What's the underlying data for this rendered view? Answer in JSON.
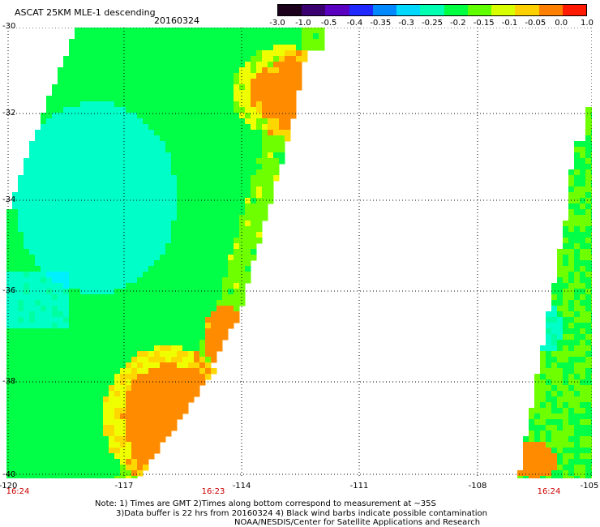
{
  "header": {
    "title": "ASCAT 25KM MLE-1 descending",
    "date": "20160324"
  },
  "colorbar": {
    "labels": [
      "-3.0",
      "-1.0",
      "-0.5",
      "-0.4",
      "-0.35",
      "-0.3",
      "-0.25",
      "-0.2",
      "-0.15",
      "-0.1",
      "-0.05",
      "0.0",
      "1.0"
    ],
    "colors": [
      "#1a001a",
      "#3a0070",
      "#5a00c0",
      "#1f28ff",
      "#0088ff",
      "#00d8ff",
      "#00ffb0",
      "#00ff40",
      "#60ff00",
      "#d8ff00",
      "#ffd000",
      "#ff8000",
      "#ff1a00"
    ]
  },
  "axes": {
    "y_ticks": [
      "-30",
      "-32",
      "-34",
      "-36",
      "-38",
      "-40"
    ],
    "x_ticks": [
      "-120",
      "-117",
      "-114",
      "-111",
      "-108",
      "-105"
    ],
    "lat_range": [
      -40,
      -30
    ],
    "lon_range": [
      -120,
      -105
    ]
  },
  "pass_times": {
    "left": "16:24",
    "middle": "16:23",
    "right": "16:24"
  },
  "notes": {
    "line1": "Note: 1) Times are GMT 2)Times along bottom correspond to measurement at ~35S",
    "line2": "3)Data buffer is 22 hrs from 20160324 4) Black wind barbs indicate possible contamination",
    "line3": "NOAA/NESDIS/Center for Satellite Applications and Research"
  }
}
